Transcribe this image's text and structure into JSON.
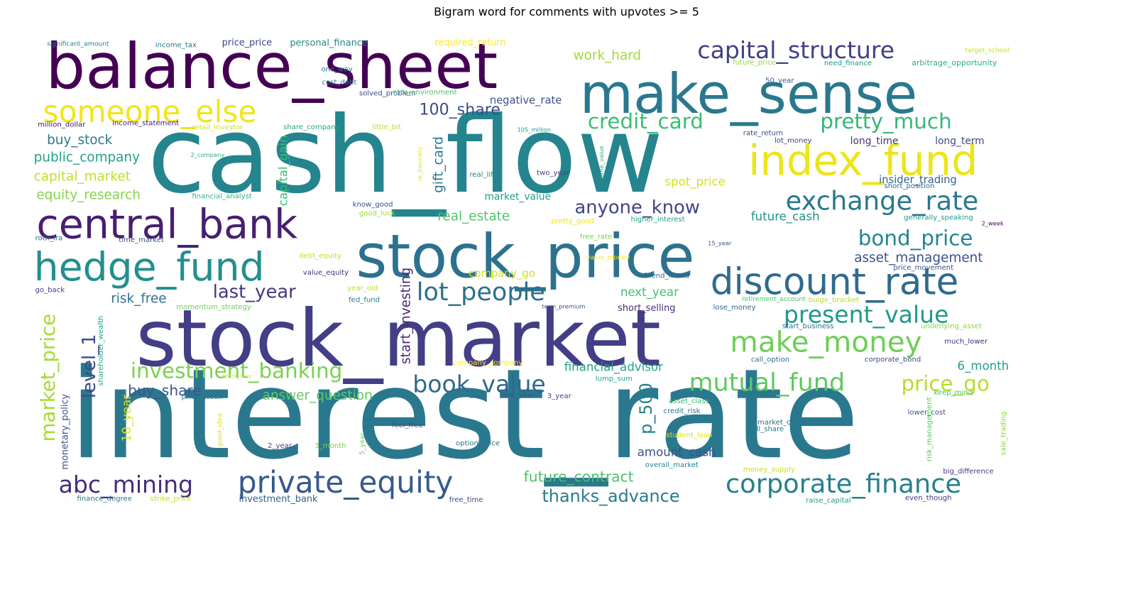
{
  "title": "Bigram word for comments with upvotes >= 5",
  "words": [
    {
      "t": "interest_rate",
      "c": "#2a788e"
    },
    {
      "t": "cash_flow",
      "c": "#25858e"
    },
    {
      "t": "stock_market",
      "c": "#433e85"
    },
    {
      "t": "balance_sheet",
      "c": "#440154"
    },
    {
      "t": "stock_price",
      "c": "#2c728e"
    },
    {
      "t": "make_sense",
      "c": "#2a788e"
    },
    {
      "t": "index_fund",
      "c": "#ede51b"
    },
    {
      "t": "central_bank",
      "c": "#481f70"
    },
    {
      "t": "hedge_fund",
      "c": "#22908d"
    },
    {
      "t": "discount_rate",
      "c": "#2f6b8e"
    },
    {
      "t": "private_equity",
      "c": "#375a8c"
    },
    {
      "t": "someone_else",
      "c": "#f1e51d"
    },
    {
      "t": "corporate_finance",
      "c": "#277f8e"
    },
    {
      "t": "make_money",
      "c": "#6ece58"
    },
    {
      "t": "exchange_rate",
      "c": "#2a788e"
    },
    {
      "t": "mutual_fund",
      "c": "#5ec962"
    },
    {
      "t": "capital_structure",
      "c": "#424086"
    },
    {
      "t": "present_value",
      "c": "#1f998a"
    },
    {
      "t": "book_value",
      "c": "#31688e"
    },
    {
      "t": "lot_people",
      "c": "#2d708e"
    },
    {
      "t": "abc_mining",
      "c": "#472d7b"
    },
    {
      "t": "bond_price",
      "c": "#25858e"
    },
    {
      "t": "investment_banking",
      "c": "#7ad151"
    },
    {
      "t": "price_go",
      "c": "#b5de2b"
    },
    {
      "t": "pretty_much",
      "c": "#35b779"
    },
    {
      "t": "credit_card",
      "c": "#3dbc74"
    },
    {
      "t": "anyone_know",
      "c": "#414487"
    },
    {
      "t": "market_price",
      "c": "#a5db36"
    },
    {
      "t": "last_year",
      "c": "#453781"
    },
    {
      "t": "level_1",
      "c": "#3e4a89"
    },
    {
      "t": "thanks_advance",
      "c": "#297b8e"
    },
    {
      "t": "future_contract",
      "c": "#4ac16d"
    },
    {
      "t": "100_share",
      "c": "#3e4989"
    },
    {
      "t": "p_500",
      "c": "#277f8e"
    },
    {
      "t": "asset_management",
      "c": "#3b528b"
    },
    {
      "t": "insider_trading",
      "c": "#33638d"
    },
    {
      "t": "buy_share",
      "c": "#39568c"
    },
    {
      "t": "answer_question",
      "c": "#5ec962"
    },
    {
      "t": "work_hard",
      "c": "#a0da39"
    },
    {
      "t": "buy_stock",
      "c": "#2a788e"
    },
    {
      "t": "public_company",
      "c": "#20a386"
    },
    {
      "t": "capital_market",
      "c": "#c2df23"
    },
    {
      "t": "equity_research",
      "c": "#84d44b"
    },
    {
      "t": "gift_card",
      "c": "#2a788e"
    },
    {
      "t": "start_investing",
      "c": "#482878"
    },
    {
      "t": "capital_gain",
      "c": "#3aba76"
    },
    {
      "t": "risk_free",
      "c": "#2c728e"
    },
    {
      "t": "real_estate",
      "c": "#52c569"
    },
    {
      "t": "spot_price",
      "c": "#d8e219"
    },
    {
      "t": "future_cash",
      "c": "#1f958b"
    },
    {
      "t": "next_year",
      "c": "#44bf70"
    },
    {
      "t": "financial_advisor",
      "c": "#20a386"
    },
    {
      "t": "amount_cash",
      "c": "#3b528b"
    },
    {
      "t": "6_month",
      "c": "#1fa088"
    },
    {
      "t": "negative_rate",
      "c": "#3b528b"
    },
    {
      "t": "long_time",
      "c": "#46327e"
    },
    {
      "t": "long_term",
      "c": "#3e4a89"
    },
    {
      "t": "market_value",
      "c": "#1f9e89"
    },
    {
      "t": "company_go",
      "c": "#d0e11c"
    },
    {
      "t": "short_selling",
      "c": "#472c7a"
    },
    {
      "t": "monetary_policy",
      "c": "#3b528b"
    },
    {
      "t": "10_year",
      "c": "#dde318"
    },
    {
      "t": "investment_bank",
      "c": "#355f8d"
    },
    {
      "t": "income_tax",
      "c": "#2a788e"
    },
    {
      "t": "price_price",
      "c": "#414487"
    },
    {
      "t": "personal_finance",
      "c": "#25858e"
    },
    {
      "t": "required_return",
      "c": "#fde725"
    },
    {
      "t": "significant_amount",
      "c": "#26828e"
    },
    {
      "t": "target_school",
      "c": "#c8e020"
    },
    {
      "t": "future_price",
      "c": "#95d840"
    },
    {
      "t": "need_finance",
      "c": "#1f968b"
    },
    {
      "t": "arbitrage_opportunity",
      "c": "#29af7f"
    },
    {
      "t": "one_way",
      "c": "#2c728e"
    },
    {
      "t": "cost_debt",
      "c": "#27808e"
    },
    {
      "t": "50_year",
      "c": "#38588c"
    },
    {
      "t": "solved_problem",
      "c": "#3f4788"
    },
    {
      "t": "rate_environment",
      "c": "#4ac16d"
    },
    {
      "t": "million_dollar",
      "c": "#481769"
    },
    {
      "t": "income_statement",
      "c": "#482475"
    },
    {
      "t": "retail_investor",
      "c": "#d2e21b"
    },
    {
      "t": "share_company",
      "c": "#22a884"
    },
    {
      "t": "little_bit",
      "c": "#bddf26"
    },
    {
      "t": "105_million",
      "c": "#1e9c89"
    },
    {
      "t": "rate_return",
      "c": "#3e4a89"
    },
    {
      "t": "lot_money",
      "c": "#414487"
    },
    {
      "t": "2_company",
      "c": "#25ab82"
    },
    {
      "t": "re_basically",
      "c": "#dde318"
    },
    {
      "t": "time_value",
      "c": "#2ab07f"
    },
    {
      "t": "real_life",
      "c": "#24868e"
    },
    {
      "t": "two_year",
      "c": "#414487"
    },
    {
      "t": "short_position",
      "c": "#31688e"
    },
    {
      "t": "financial_analyst",
      "c": "#35b779"
    },
    {
      "t": "know_good",
      "c": "#3b528b"
    },
    {
      "t": "good_luck",
      "c": "#9bd93c"
    },
    {
      "t": "pretty_good",
      "c": "#ede51b"
    },
    {
      "t": "higher_interest",
      "c": "#20a386"
    },
    {
      "t": "generally_speaking",
      "c": "#1f9a8a"
    },
    {
      "t": "2_week",
      "c": "#440154"
    },
    {
      "t": "roth_ira",
      "c": "#31688e"
    },
    {
      "t": "time_market",
      "c": "#3b528b"
    },
    {
      "t": "free_rate",
      "c": "#7ad151"
    },
    {
      "t": "15_year",
      "c": "#3b528b"
    },
    {
      "t": "debt_equity",
      "c": "#c2df23"
    },
    {
      "t": "value_money",
      "c": "#fde725"
    },
    {
      "t": "value_equity",
      "c": "#46337e"
    },
    {
      "t": "friend_friend",
      "c": "#31688e"
    },
    {
      "t": "price_movement",
      "c": "#3b528b"
    },
    {
      "t": "go_back",
      "c": "#443983"
    },
    {
      "t": "year_old",
      "c": "#c2df23"
    },
    {
      "t": "fed_fund",
      "c": "#277f8e"
    },
    {
      "t": "retirement_account",
      "c": "#4ac16d"
    },
    {
      "t": "bulge_bracket",
      "c": "#b5de2b"
    },
    {
      "t": "momentum_strategy",
      "c": "#6ece58"
    },
    {
      "t": "term_premium",
      "c": "#3b528b"
    },
    {
      "t": "lose_money",
      "c": "#31688e"
    },
    {
      "t": "shareholder_wealth",
      "c": "#20a386"
    },
    {
      "t": "start_business",
      "c": "#2d708e"
    },
    {
      "t": "underlying_asset",
      "c": "#86d549"
    },
    {
      "t": "company_company",
      "c": "#fde725"
    },
    {
      "t": "much_lower",
      "c": "#46327e"
    },
    {
      "t": "call_option",
      "c": "#2c728e"
    },
    {
      "t": "corporate_bond",
      "c": "#3e4a89"
    },
    {
      "t": "stock_buy",
      "c": "#c2df23"
    },
    {
      "t": "lump_sum",
      "c": "#22a884"
    },
    {
      "t": "price_stock",
      "c": "#2c728e"
    },
    {
      "t": "one_year",
      "c": "#3b528b"
    },
    {
      "t": "3_year",
      "c": "#414487"
    },
    {
      "t": "keep_mind",
      "c": "#4ac16d"
    },
    {
      "t": "lower_cost",
      "c": "#3b528b"
    },
    {
      "t": "asset_class",
      "c": "#35b779"
    },
    {
      "t": "credit_risk",
      "c": "#2c728e"
    },
    {
      "t": "risk_management",
      "c": "#5ec962"
    },
    {
      "t": "sale_trading",
      "c": "#86d549"
    },
    {
      "t": "good_idea",
      "c": "#d8e219"
    },
    {
      "t": "feel_free",
      "c": "#3b528b"
    },
    {
      "t": "market_crash",
      "c": "#2d708e"
    },
    {
      "t": "sell_share",
      "c": "#297b8e"
    },
    {
      "t": "student_loan",
      "c": "#dde318"
    },
    {
      "t": "2_year",
      "c": "#3e4a89"
    },
    {
      "t": "3_month",
      "c": "#7ad151"
    },
    {
      "t": "5_year",
      "c": "#6ece58"
    },
    {
      "t": "option_price",
      "c": "#2c728e"
    },
    {
      "t": "overall_market",
      "c": "#25858e"
    },
    {
      "t": "money_supply",
      "c": "#c2df23"
    },
    {
      "t": "big_difference",
      "c": "#433e85"
    },
    {
      "t": "finance_degree",
      "c": "#2a788e"
    },
    {
      "t": "strike_price",
      "c": "#c2df23"
    },
    {
      "t": "free_time",
      "c": "#3e4a89"
    },
    {
      "t": "raise_capital",
      "c": "#1f9e89"
    },
    {
      "t": "even_though",
      "c": "#453781"
    }
  ]
}
